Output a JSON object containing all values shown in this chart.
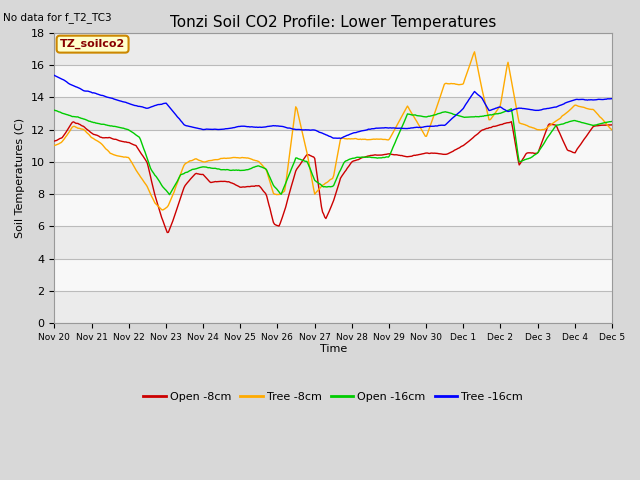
{
  "title": "Tonzi Soil CO2 Profile: Lower Temperatures",
  "subtitle": "No data for f_T2_TC3",
  "ylabel": "Soil Temperatures (C)",
  "xlabel": "Time",
  "box_label": "TZ_soilco2",
  "ylim": [
    0,
    18
  ],
  "yticks": [
    0,
    2,
    4,
    6,
    8,
    10,
    12,
    14,
    16,
    18
  ],
  "outer_bg": "#d8d8d8",
  "plot_bg": "#ffffff",
  "series_colors": {
    "open8": "#cc0000",
    "tree8": "#ffaa00",
    "open16": "#00cc00",
    "tree16": "#0000ff"
  },
  "legend_labels": [
    "Open -8cm",
    "Tree -8cm",
    "Open -16cm",
    "Tree -16cm"
  ],
  "x_tick_labels": [
    "Nov 20",
    "Nov 21",
    "Nov 22",
    "Nov 23",
    "Nov 24",
    "Nov 25",
    "Nov 26",
    "Nov 27",
    "Nov 28",
    "Nov 29",
    "Nov 30",
    "Dec 1",
    "Dec 2",
    "Dec 3",
    "Dec 4",
    "Dec 5"
  ],
  "n_points": 500
}
